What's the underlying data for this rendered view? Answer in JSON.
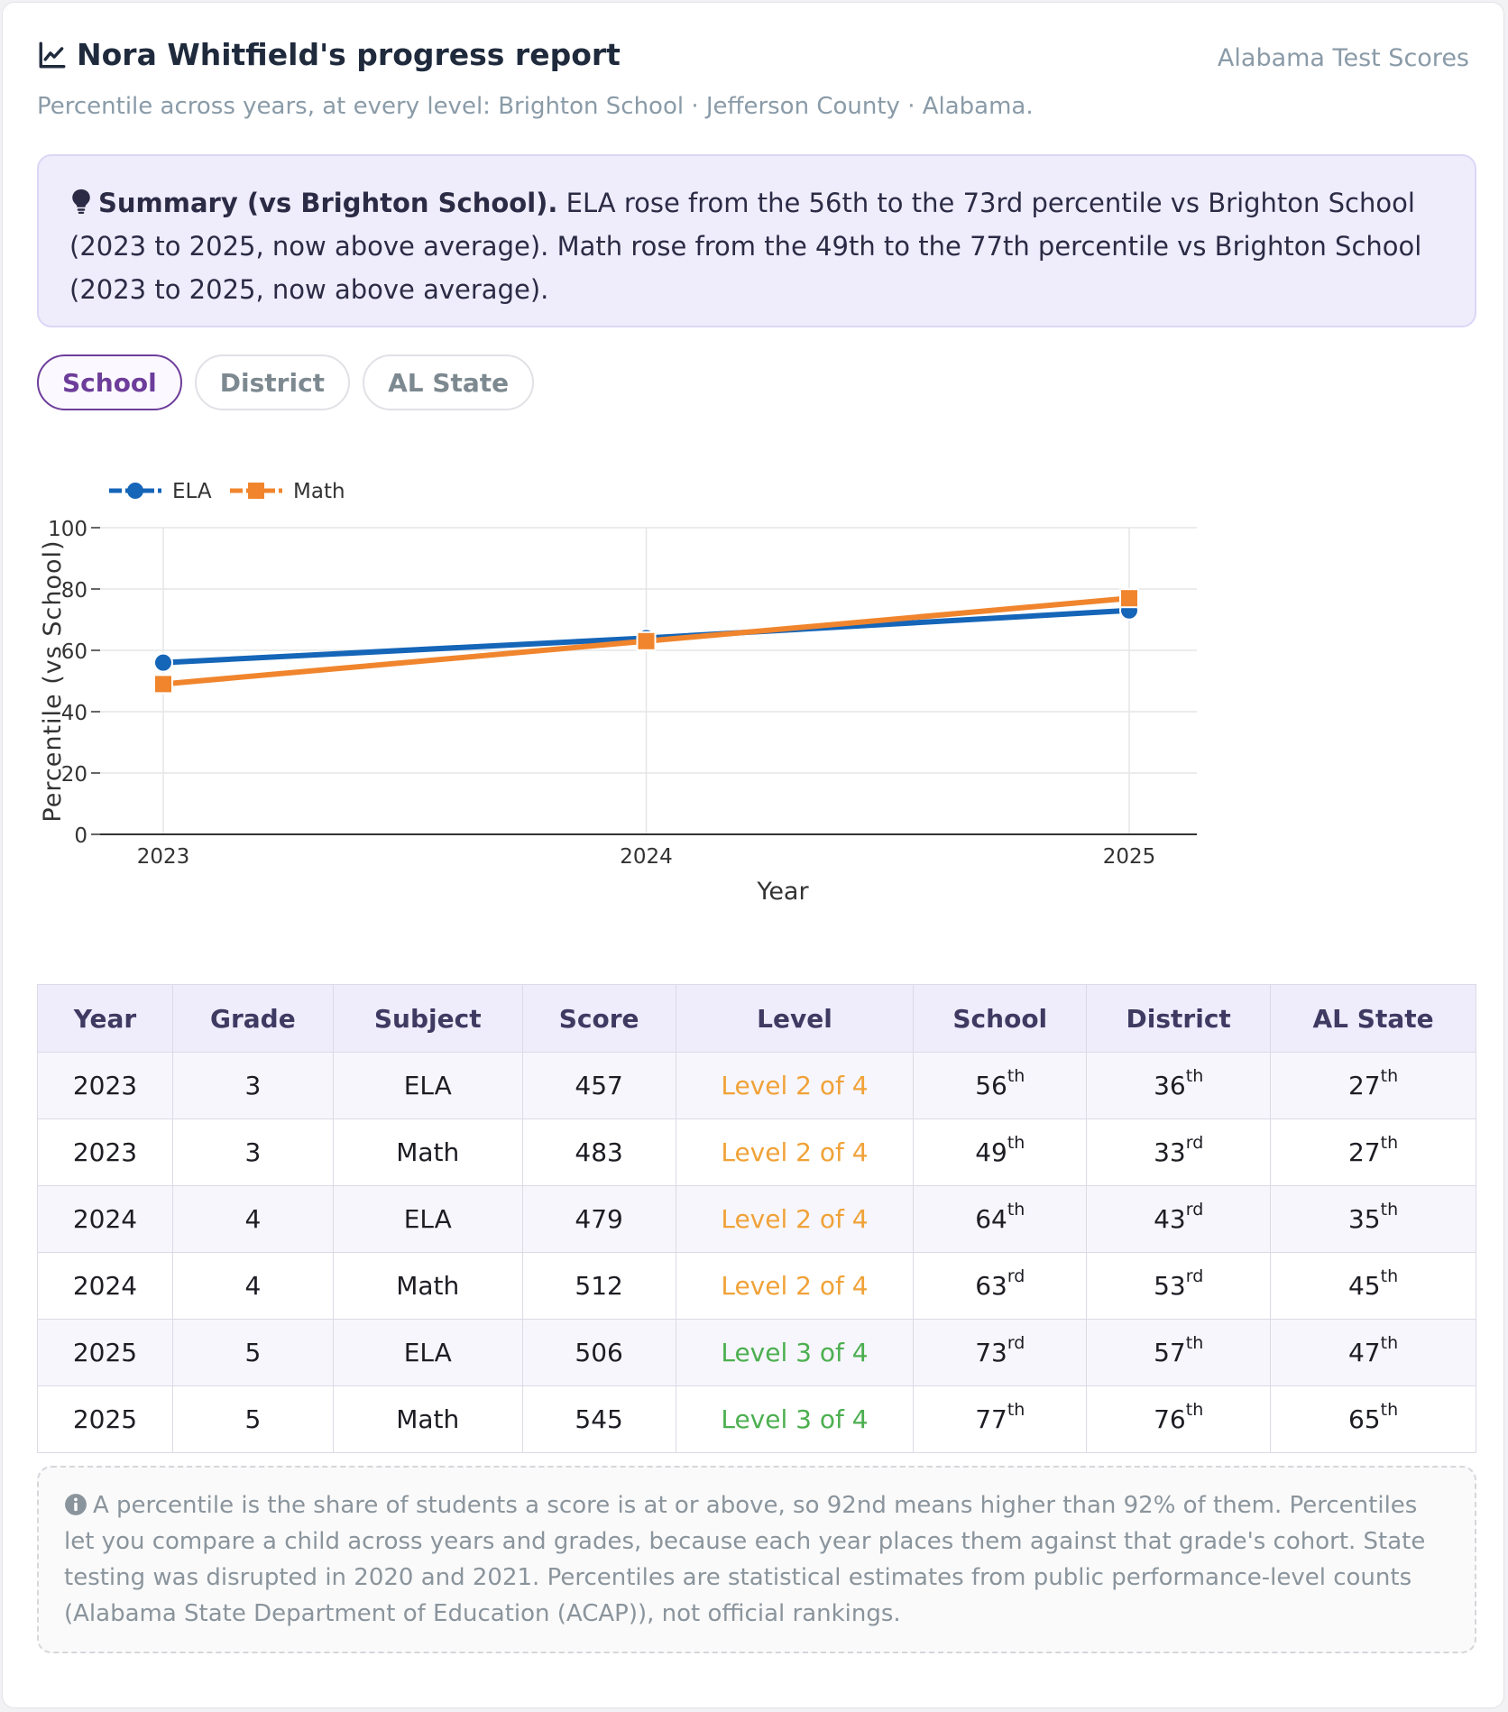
{
  "header": {
    "title": "Nora Whitfield's progress report",
    "brand": "Alabama Test Scores",
    "subtitle": "Percentile across years, at every level: Brighton School · Jefferson County · Alabama."
  },
  "summary": {
    "label": "Summary (vs Brighton School).",
    "text": " ELA rose from the 56th to the 73rd percentile vs Brighton School (2023 to 2025, now above average). Math rose from the 49th to the 77th percentile vs Brighton School (2023 to 2025, now above average)."
  },
  "tabs": [
    {
      "label": "School",
      "active": true
    },
    {
      "label": "District",
      "active": false
    },
    {
      "label": "AL State",
      "active": false
    }
  ],
  "chart_data": {
    "type": "line",
    "title": "",
    "xlabel": "Year",
    "ylabel": "Percentile (vs School)",
    "x": [
      "2023",
      "2024",
      "2025"
    ],
    "ylim": [
      0,
      100
    ],
    "yticks": [
      0,
      20,
      40,
      60,
      80,
      100
    ],
    "grid": true,
    "legend": "top-left",
    "series": [
      {
        "name": "ELA",
        "values": [
          56,
          64,
          73
        ],
        "color": "#1565b8",
        "marker": "circle"
      },
      {
        "name": "Math",
        "values": [
          49,
          63,
          77
        ],
        "color": "#f0852d",
        "marker": "square"
      }
    ]
  },
  "table": {
    "headers": [
      "Year",
      "Grade",
      "Subject",
      "Score",
      "Level",
      "School",
      "District",
      "AL State"
    ],
    "rows": [
      {
        "year": "2023",
        "grade": "3",
        "subject": "ELA",
        "score": "457",
        "level": "Level 2 of 4",
        "level_num": 2,
        "school": [
          "56",
          "th"
        ],
        "district": [
          "36",
          "th"
        ],
        "state": [
          "27",
          "th"
        ]
      },
      {
        "year": "2023",
        "grade": "3",
        "subject": "Math",
        "score": "483",
        "level": "Level 2 of 4",
        "level_num": 2,
        "school": [
          "49",
          "th"
        ],
        "district": [
          "33",
          "rd"
        ],
        "state": [
          "27",
          "th"
        ]
      },
      {
        "year": "2024",
        "grade": "4",
        "subject": "ELA",
        "score": "479",
        "level": "Level 2 of 4",
        "level_num": 2,
        "school": [
          "64",
          "th"
        ],
        "district": [
          "43",
          "rd"
        ],
        "state": [
          "35",
          "th"
        ]
      },
      {
        "year": "2024",
        "grade": "4",
        "subject": "Math",
        "score": "512",
        "level": "Level 2 of 4",
        "level_num": 2,
        "school": [
          "63",
          "rd"
        ],
        "district": [
          "53",
          "rd"
        ],
        "state": [
          "45",
          "th"
        ]
      },
      {
        "year": "2025",
        "grade": "5",
        "subject": "ELA",
        "score": "506",
        "level": "Level 3 of 4",
        "level_num": 3,
        "school": [
          "73",
          "rd"
        ],
        "district": [
          "57",
          "th"
        ],
        "state": [
          "47",
          "th"
        ]
      },
      {
        "year": "2025",
        "grade": "5",
        "subject": "Math",
        "score": "545",
        "level": "Level 3 of 4",
        "level_num": 3,
        "school": [
          "77",
          "th"
        ],
        "district": [
          "76",
          "th"
        ],
        "state": [
          "65",
          "th"
        ]
      }
    ]
  },
  "note": {
    "text": "A percentile is the share of students a score is at or above, so 92nd means higher than 92% of them. Percentiles let you compare a child across years and grades, because each year places them against that grade's cohort. State testing was disrupted in 2020 and 2021. Percentiles are statistical estimates from public performance-level counts (Alabama State Department of Education (ACAP)), not official rankings."
  },
  "icons": {
    "title": "line-chart-icon",
    "summary": "lightbulb-icon",
    "note": "info-circle-icon"
  }
}
